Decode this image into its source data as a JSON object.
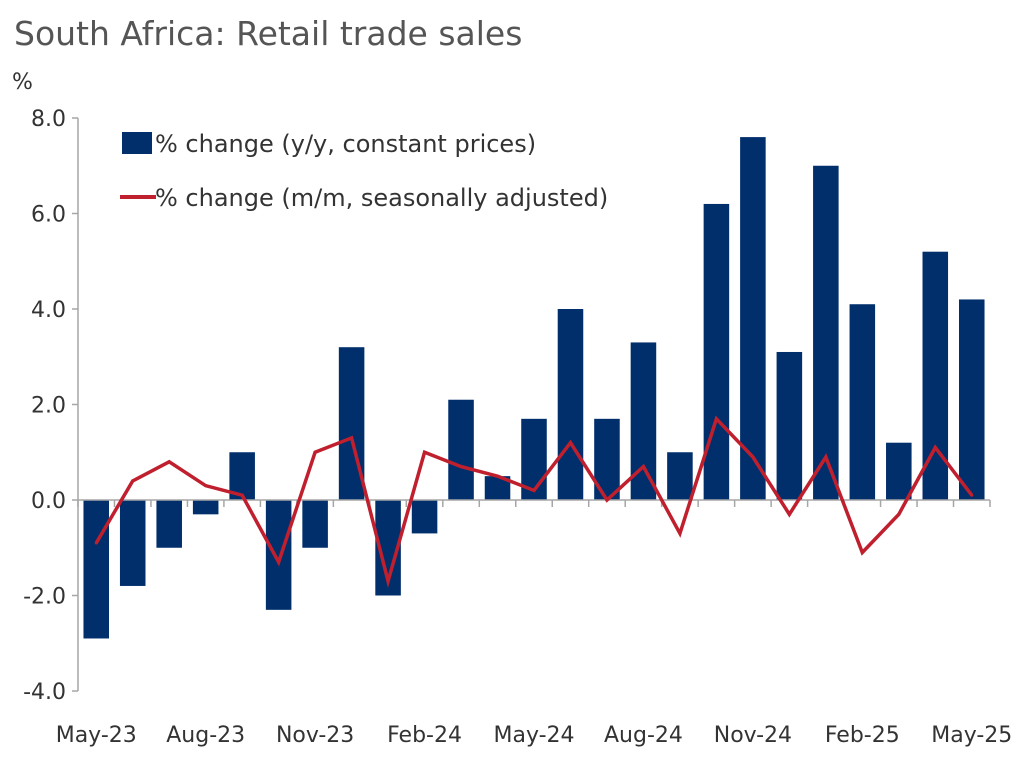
{
  "chart_data": {
    "type": "bar",
    "title": "South Africa: Retail trade sales",
    "ylabel": "%",
    "xlabel": "",
    "ylim": [
      -4,
      8
    ],
    "yticks": [
      "-4.0",
      "-2.0",
      "0.0",
      "2.0",
      "4.0",
      "6.0",
      "8.0"
    ],
    "grid": false,
    "legend_position": "top-left",
    "categories": [
      "May-23",
      "Jun-23",
      "Jul-23",
      "Aug-23",
      "Sep-23",
      "Oct-23",
      "Nov-23",
      "Dec-23",
      "Jan-24",
      "Feb-24",
      "Mar-24",
      "Apr-24",
      "May-24",
      "Jun-24",
      "Jul-24",
      "Aug-24",
      "Sep-24",
      "Oct-24",
      "Nov-24",
      "Dec-24",
      "Jan-25",
      "Feb-25",
      "Mar-25",
      "Apr-25",
      "May-25"
    ],
    "x_tick_labels": [
      "May-23",
      "Aug-23",
      "Nov-23",
      "Feb-24",
      "May-24",
      "Aug-24",
      "Nov-24",
      "Feb-25",
      "May-25"
    ],
    "series": [
      {
        "name": "% change (y/y, constant prices)",
        "type": "bar",
        "color": "#002f6c",
        "values": [
          -2.9,
          -1.8,
          -1.0,
          -0.3,
          1.0,
          -2.3,
          -1.0,
          3.2,
          -2.0,
          -0.7,
          2.1,
          0.5,
          1.7,
          4.0,
          1.7,
          3.3,
          1.0,
          6.2,
          7.6,
          3.1,
          7.0,
          4.1,
          1.2,
          5.2,
          4.2
        ]
      },
      {
        "name": "% change (m/m, seasonally adjusted)",
        "type": "line",
        "color": "#c0202e",
        "values": [
          -0.9,
          0.4,
          0.8,
          0.3,
          0.1,
          -1.3,
          1.0,
          1.3,
          -1.7,
          1.0,
          0.7,
          0.5,
          0.2,
          1.2,
          0.0,
          0.7,
          -0.7,
          1.7,
          0.9,
          -0.3,
          0.9,
          -1.1,
          -0.3,
          1.1,
          0.1
        ]
      }
    ]
  }
}
